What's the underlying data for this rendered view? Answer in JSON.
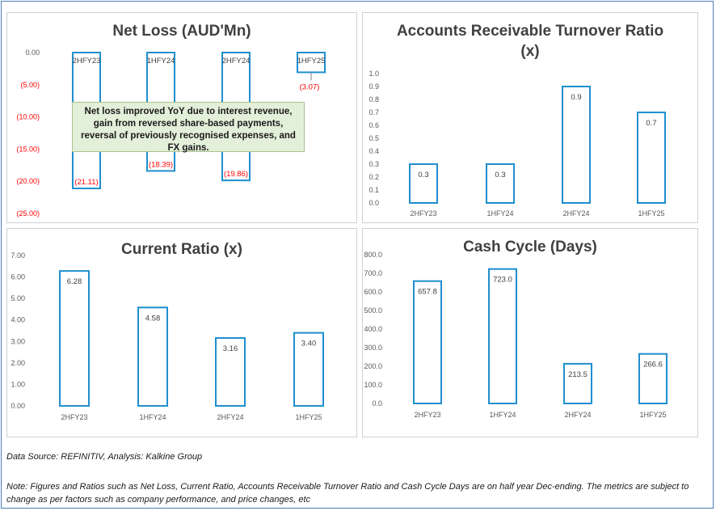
{
  "colors": {
    "bar_stroke": "#1f8fcf",
    "negative_label": "#ff0000",
    "annotation_bg": "#e2efd9"
  },
  "chart_data": [
    {
      "id": "net_loss",
      "type": "bar",
      "title": "Net Loss (AUD'Mn)",
      "categories": [
        "2HFY23",
        "1HFY24",
        "2HFY24",
        "1HFY25"
      ],
      "values": [
        -21.11,
        -18.39,
        -19.86,
        -3.07
      ],
      "data_labels": [
        "(21.11)",
        "(18.39)",
        "(19.86)",
        "(3.07)"
      ],
      "yticks": [
        "0.00",
        "(5.00)",
        "(10.00)",
        "(15.00)",
        "(20.00)",
        "(25.00)"
      ],
      "ylim": [
        -25,
        0
      ],
      "annotation": "Net loss improved YoY due to interest revenue, gain from reversed share-based payments, reversal of previously recognised expenses, and FX gains."
    },
    {
      "id": "ar_turnover",
      "type": "bar",
      "title": "Accounts Receivable Turnover Ratio (x)",
      "categories": [
        "2HFY23",
        "1HFY24",
        "2HFY24",
        "1HFY25"
      ],
      "values": [
        0.3,
        0.3,
        0.9,
        0.7
      ],
      "data_labels": [
        "0.3",
        "0.3",
        "0.9",
        "0.7"
      ],
      "yticks": [
        "0.0",
        "0.1",
        "0.2",
        "0.3",
        "0.4",
        "0.5",
        "0.6",
        "0.7",
        "0.8",
        "0.9",
        "1.0"
      ],
      "ylim": [
        0,
        1.0
      ]
    },
    {
      "id": "current_ratio",
      "type": "bar",
      "title": "Current Ratio (x)",
      "categories": [
        "2HFY23",
        "1HFY24",
        "2HFY24",
        "1HFY25"
      ],
      "values": [
        6.28,
        4.58,
        3.16,
        3.4
      ],
      "data_labels": [
        "6.28",
        "4.58",
        "3.16",
        "3.40"
      ],
      "yticks": [
        "0.00",
        "1.00",
        "2.00",
        "3.00",
        "4.00",
        "5.00",
        "6.00",
        "7.00"
      ],
      "ylim": [
        0,
        7
      ]
    },
    {
      "id": "cash_cycle",
      "type": "bar",
      "title": "Cash Cycle (Days)",
      "categories": [
        "2HFY23",
        "1HFY24",
        "2HFY24",
        "1HFY25"
      ],
      "values": [
        657.8,
        723.0,
        213.5,
        266.6
      ],
      "data_labels": [
        "657.8",
        "723.0",
        "213.5",
        "266.6"
      ],
      "yticks": [
        "0.0",
        "100.0",
        "200.0",
        "300.0",
        "400.0",
        "500.0",
        "600.0",
        "700.0",
        "800.0"
      ],
      "ylim": [
        0,
        800
      ]
    }
  ],
  "footer": {
    "source": "Data Source: REFINITIV, Analysis: Kalkine Group",
    "note": "Note: Figures and Ratios such as Net Loss, Current Ratio, Accounts Receivable Turnover Ratio and Cash Cycle Days are on half year Dec-ending. The metrics are subject to change as per factors such as company performance, and price changes, etc"
  }
}
